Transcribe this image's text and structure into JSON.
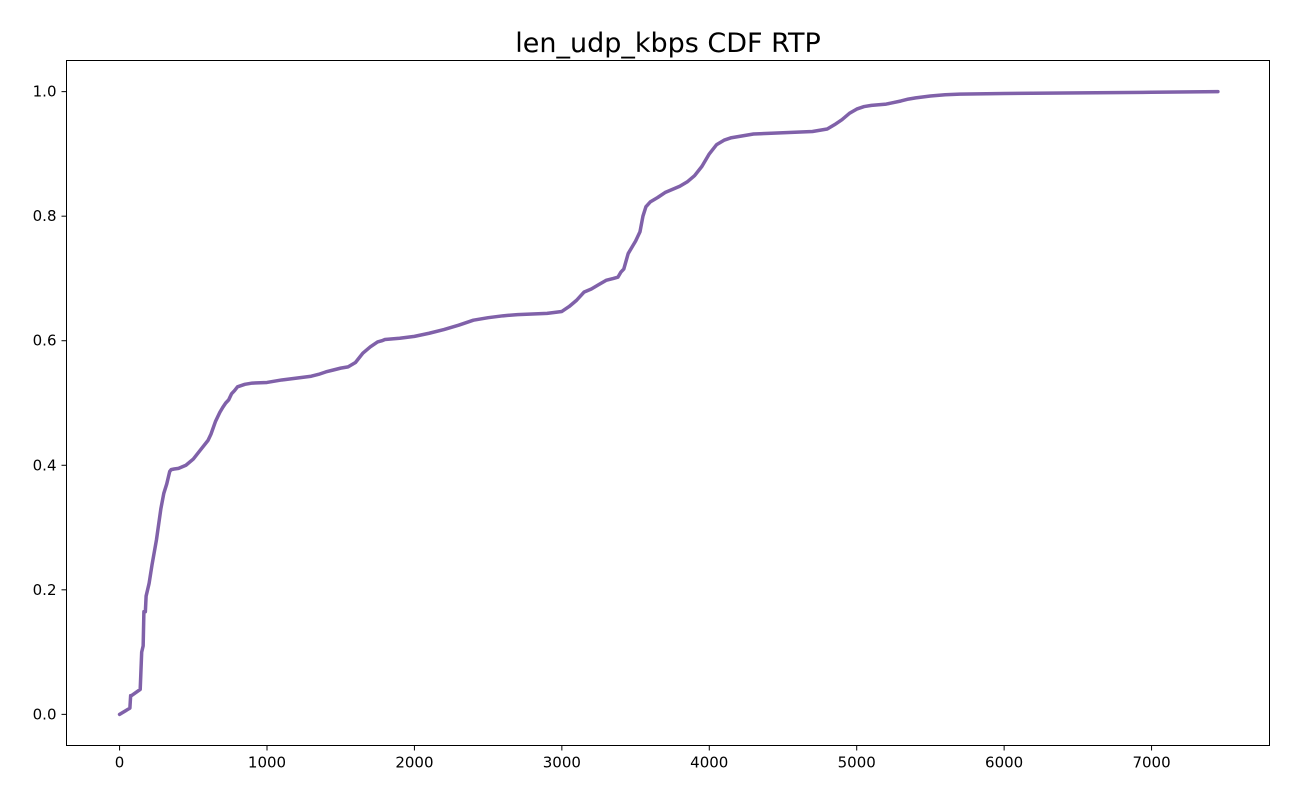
{
  "chart_data": {
    "type": "line",
    "title": "len_udp_kbps CDF RTP",
    "xlabel": "",
    "ylabel": "",
    "xlim": [
      -360,
      7800
    ],
    "ylim": [
      -0.05,
      1.05
    ],
    "x_ticks": [
      0,
      1000,
      2000,
      3000,
      4000,
      5000,
      6000,
      7000
    ],
    "x_tick_labels": [
      "0",
      "1000",
      "2000",
      "3000",
      "4000",
      "5000",
      "6000",
      "7000"
    ],
    "y_ticks": [
      0.0,
      0.2,
      0.4,
      0.6,
      0.8,
      1.0
    ],
    "y_tick_labels": [
      "0.0",
      "0.2",
      "0.4",
      "0.6",
      "0.8",
      "1.0"
    ],
    "grid": false,
    "legend": "none",
    "series": [
      {
        "color": "#8061a9",
        "x": [
          0,
          70,
          75,
          80,
          140,
          150,
          155,
          160,
          165,
          175,
          180,
          185,
          200,
          220,
          250,
          280,
          300,
          320,
          340,
          350,
          370,
          400,
          450,
          500,
          550,
          600,
          620,
          650,
          680,
          700,
          720,
          740,
          760,
          780,
          800,
          850,
          900,
          1000,
          1100,
          1200,
          1300,
          1350,
          1400,
          1450,
          1500,
          1550,
          1600,
          1650,
          1700,
          1750,
          1780,
          1800,
          1850,
          1900,
          2000,
          2100,
          2200,
          2300,
          2400,
          2450,
          2500,
          2600,
          2700,
          2800,
          2900,
          3000,
          3050,
          3100,
          3150,
          3200,
          3250,
          3300,
          3350,
          3380,
          3400,
          3420,
          3450,
          3500,
          3530,
          3550,
          3570,
          3600,
          3650,
          3700,
          3750,
          3800,
          3850,
          3900,
          3950,
          4000,
          4050,
          4100,
          4150,
          4200,
          4300,
          4400,
          4500,
          4600,
          4700,
          4800,
          4850,
          4900,
          4950,
          5000,
          5050,
          5100,
          5200,
          5300,
          5350,
          5400,
          5500,
          5600,
          5700,
          6000,
          7000,
          7450
        ],
        "y": [
          0.0,
          0.01,
          0.03,
          0.03,
          0.04,
          0.1,
          0.105,
          0.11,
          0.165,
          0.165,
          0.19,
          0.195,
          0.21,
          0.24,
          0.28,
          0.33,
          0.355,
          0.37,
          0.39,
          0.393,
          0.394,
          0.395,
          0.4,
          0.41,
          0.425,
          0.44,
          0.45,
          0.47,
          0.485,
          0.493,
          0.5,
          0.505,
          0.515,
          0.52,
          0.526,
          0.53,
          0.532,
          0.533,
          0.537,
          0.54,
          0.543,
          0.546,
          0.55,
          0.553,
          0.556,
          0.558,
          0.565,
          0.58,
          0.59,
          0.598,
          0.6,
          0.602,
          0.603,
          0.604,
          0.607,
          0.612,
          0.618,
          0.625,
          0.633,
          0.635,
          0.637,
          0.64,
          0.642,
          0.643,
          0.644,
          0.647,
          0.655,
          0.665,
          0.678,
          0.683,
          0.69,
          0.697,
          0.7,
          0.702,
          0.71,
          0.715,
          0.74,
          0.76,
          0.775,
          0.8,
          0.815,
          0.823,
          0.83,
          0.838,
          0.843,
          0.848,
          0.855,
          0.865,
          0.88,
          0.9,
          0.915,
          0.922,
          0.926,
          0.928,
          0.932,
          0.933,
          0.934,
          0.935,
          0.936,
          0.94,
          0.947,
          0.955,
          0.965,
          0.972,
          0.976,
          0.978,
          0.98,
          0.985,
          0.988,
          0.99,
          0.993,
          0.995,
          0.996,
          0.997,
          0.999,
          1.0
        ]
      }
    ]
  }
}
